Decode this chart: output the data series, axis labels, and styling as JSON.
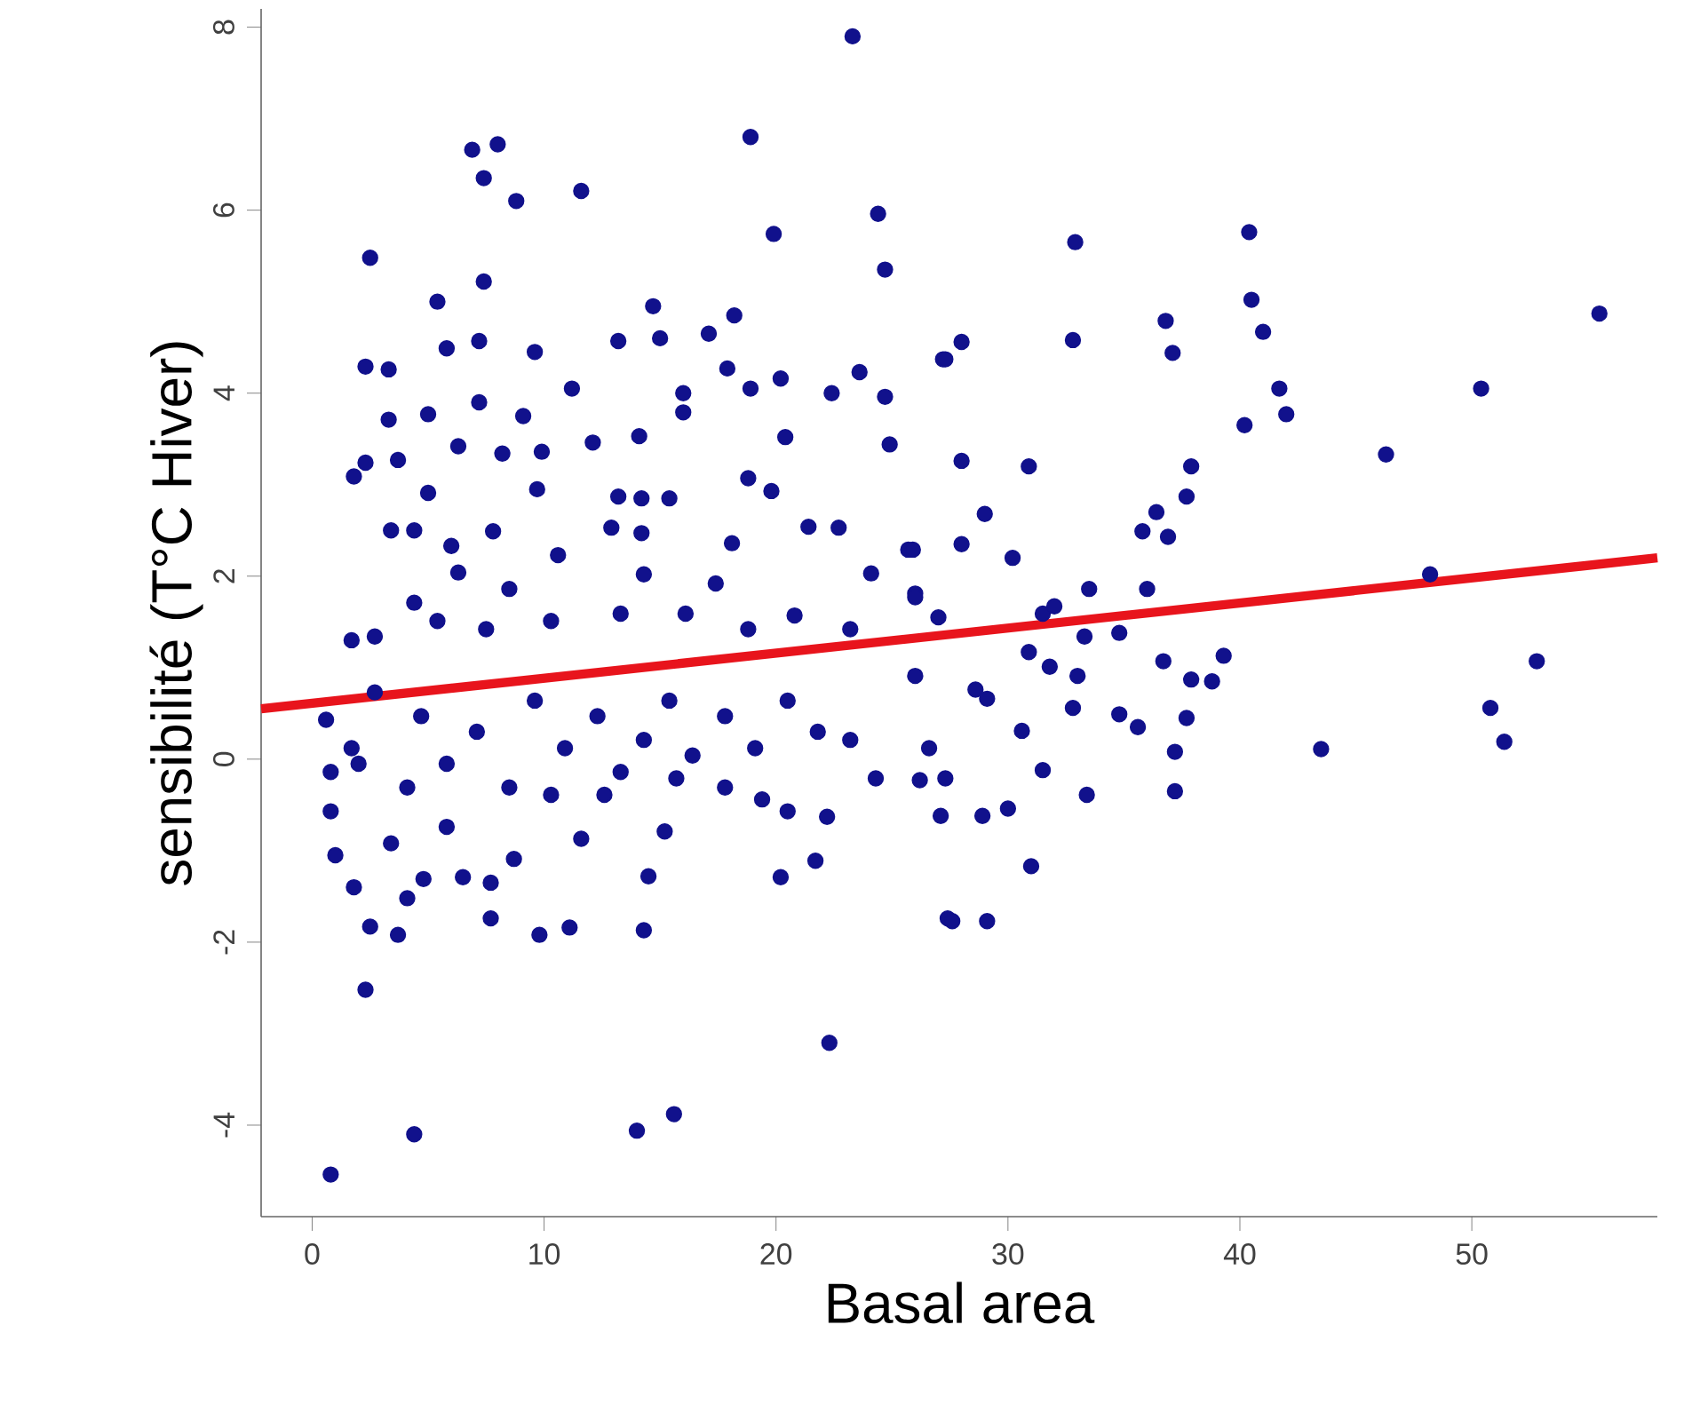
{
  "chart_data": {
    "type": "scatter",
    "xlabel": "Basal area",
    "ylabel": "sensibilité (T°C Hiver)",
    "xlim": [
      -2.2,
      58
    ],
    "ylim": [
      -5,
      8.2
    ],
    "xticks": [
      0,
      10,
      20,
      30,
      40,
      50
    ],
    "yticks": [
      -4,
      -2,
      0,
      2,
      4,
      6,
      8
    ],
    "series": [
      {
        "type": "scatter",
        "color": "#11118c",
        "marker": "circle",
        "x": [
          0.8,
          4.4,
          14.0,
          15.6,
          22.3,
          23.3,
          18.9,
          6.9,
          8.0,
          7.4,
          8.8,
          11.6,
          2.5,
          19.9,
          24.4,
          24.7,
          7.4,
          5.4,
          14.7,
          2.3,
          3.3,
          7.2,
          5.8,
          9.6,
          11.2,
          13.2,
          15.0,
          17.1,
          18.2,
          17.9,
          18.9,
          20.2,
          22.4,
          23.6,
          24.7,
          27.2,
          3.3,
          5.0,
          7.2,
          9.1,
          12.1,
          14.1,
          16.0,
          16.0,
          20.4,
          24.9,
          1.8,
          2.3,
          3.7,
          6.3,
          8.2,
          9.9,
          5.0,
          9.7,
          13.2,
          14.2,
          15.4,
          18.8,
          19.8,
          3.4,
          4.4,
          12.9,
          14.2,
          18.1,
          21.4,
          22.7,
          25.7,
          6.0,
          7.8,
          10.6,
          4.4,
          6.3,
          8.5,
          14.3,
          17.4,
          20.8,
          24.1,
          26.0,
          1.7,
          2.7,
          5.4,
          7.5,
          10.3,
          13.3,
          16.1,
          18.8,
          23.2,
          0.6,
          1.7,
          0.8,
          0.8,
          1.0,
          1.8,
          2.3,
          2.5,
          3.7,
          4.1,
          4.8,
          6.5,
          7.7,
          7.7,
          9.8,
          11.1,
          14.3,
          14.5,
          20.2,
          21.7,
          22.2,
          27.4,
          8.7,
          3.4,
          5.8,
          11.6,
          15.2,
          20.5,
          17.8,
          2.7,
          4.7,
          5.8,
          7.1,
          8.5,
          9.6,
          10.9,
          12.3,
          13.3,
          14.3,
          15.4,
          16.4,
          17.8,
          19.1,
          20.5,
          21.8,
          23.2,
          24.3,
          26.0,
          26.6,
          27.3,
          4.1,
          2.0,
          10.3,
          12.6,
          15.7,
          19.4,
          32.9,
          40.4,
          55.5,
          32.8,
          36.8,
          37.1,
          40.5,
          41.0,
          27.3,
          28.0,
          41.7,
          42.0,
          50.4,
          40.2,
          46.3,
          28.0,
          30.9,
          37.9,
          37.7,
          36.4,
          35.8,
          36.9,
          29.0,
          28.0,
          30.2,
          25.9,
          48.2,
          33.5,
          36.0,
          31.5,
          32.0,
          27.0,
          33.3,
          34.8,
          30.9,
          36.7,
          39.3,
          37.9,
          38.8,
          52.8,
          33.0,
          31.8,
          28.6,
          29.1,
          32.8,
          34.8,
          35.6,
          37.7,
          50.8,
          51.4,
          43.5,
          37.2,
          30.6,
          31.5,
          33.4,
          37.2,
          30.0,
          28.9,
          31.0,
          27.6,
          29.1,
          26.2,
          27.1,
          26.0
        ],
        "values": [
          -4.54,
          -4.1,
          -4.06,
          -3.88,
          -3.1,
          7.9,
          6.8,
          6.66,
          6.72,
          6.35,
          6.1,
          6.21,
          5.48,
          5.74,
          5.96,
          5.35,
          5.22,
          5.0,
          4.95,
          4.29,
          4.26,
          4.57,
          4.49,
          4.45,
          4.05,
          4.57,
          4.6,
          4.65,
          4.85,
          4.27,
          4.05,
          4.16,
          4.0,
          4.23,
          3.96,
          4.37,
          3.71,
          3.77,
          3.9,
          3.75,
          3.46,
          3.53,
          4.0,
          3.79,
          3.52,
          3.44,
          3.09,
          3.24,
          3.27,
          3.42,
          3.34,
          3.36,
          2.91,
          2.95,
          2.87,
          2.85,
          2.85,
          3.07,
          2.93,
          2.5,
          2.5,
          2.53,
          2.47,
          2.36,
          2.54,
          2.53,
          2.29,
          2.33,
          2.49,
          2.23,
          1.71,
          2.04,
          1.86,
          2.02,
          1.92,
          1.57,
          2.03,
          1.81,
          1.3,
          1.34,
          1.51,
          1.42,
          1.51,
          1.59,
          1.59,
          1.42,
          1.42,
          0.43,
          0.12,
          -0.14,
          -0.57,
          -1.05,
          -1.4,
          -2.52,
          -1.83,
          -1.92,
          -1.52,
          -1.31,
          -1.29,
          -1.35,
          -1.74,
          -1.92,
          -1.84,
          -1.87,
          -1.28,
          -1.29,
          -1.11,
          -0.63,
          -1.74,
          -1.09,
          -0.92,
          -0.74,
          -0.87,
          -0.79,
          -0.57,
          -0.31,
          0.73,
          0.47,
          -0.05,
          0.3,
          -0.31,
          0.64,
          0.12,
          0.47,
          -0.14,
          0.21,
          0.64,
          0.04,
          0.47,
          0.12,
          0.64,
          0.3,
          0.21,
          -0.21,
          0.91,
          0.12,
          -0.21,
          -0.31,
          -0.05,
          -0.39,
          -0.39,
          -0.21,
          -0.44,
          5.65,
          5.76,
          4.87,
          4.58,
          4.79,
          4.44,
          5.02,
          4.67,
          4.37,
          4.56,
          4.05,
          3.77,
          4.05,
          3.65,
          3.33,
          3.26,
          3.2,
          3.2,
          2.87,
          2.7,
          2.49,
          2.43,
          2.68,
          2.35,
          2.2,
          2.29,
          2.02,
          1.86,
          1.86,
          1.59,
          1.67,
          1.55,
          1.34,
          1.38,
          1.17,
          1.07,
          1.13,
          0.87,
          0.85,
          1.07,
          0.91,
          1.01,
          0.76,
          0.66,
          0.56,
          0.49,
          0.35,
          0.45,
          0.56,
          0.19,
          0.11,
          0.08,
          0.31,
          -0.12,
          -0.39,
          -0.35,
          -0.54,
          -0.62,
          -1.17,
          -1.77,
          -1.77,
          -0.23,
          -0.62,
          1.77
        ]
      },
      {
        "type": "line",
        "color": "#e8141c",
        "x": [
          -2.2,
          58
        ],
        "values": [
          0.55,
          2.2
        ]
      }
    ]
  }
}
